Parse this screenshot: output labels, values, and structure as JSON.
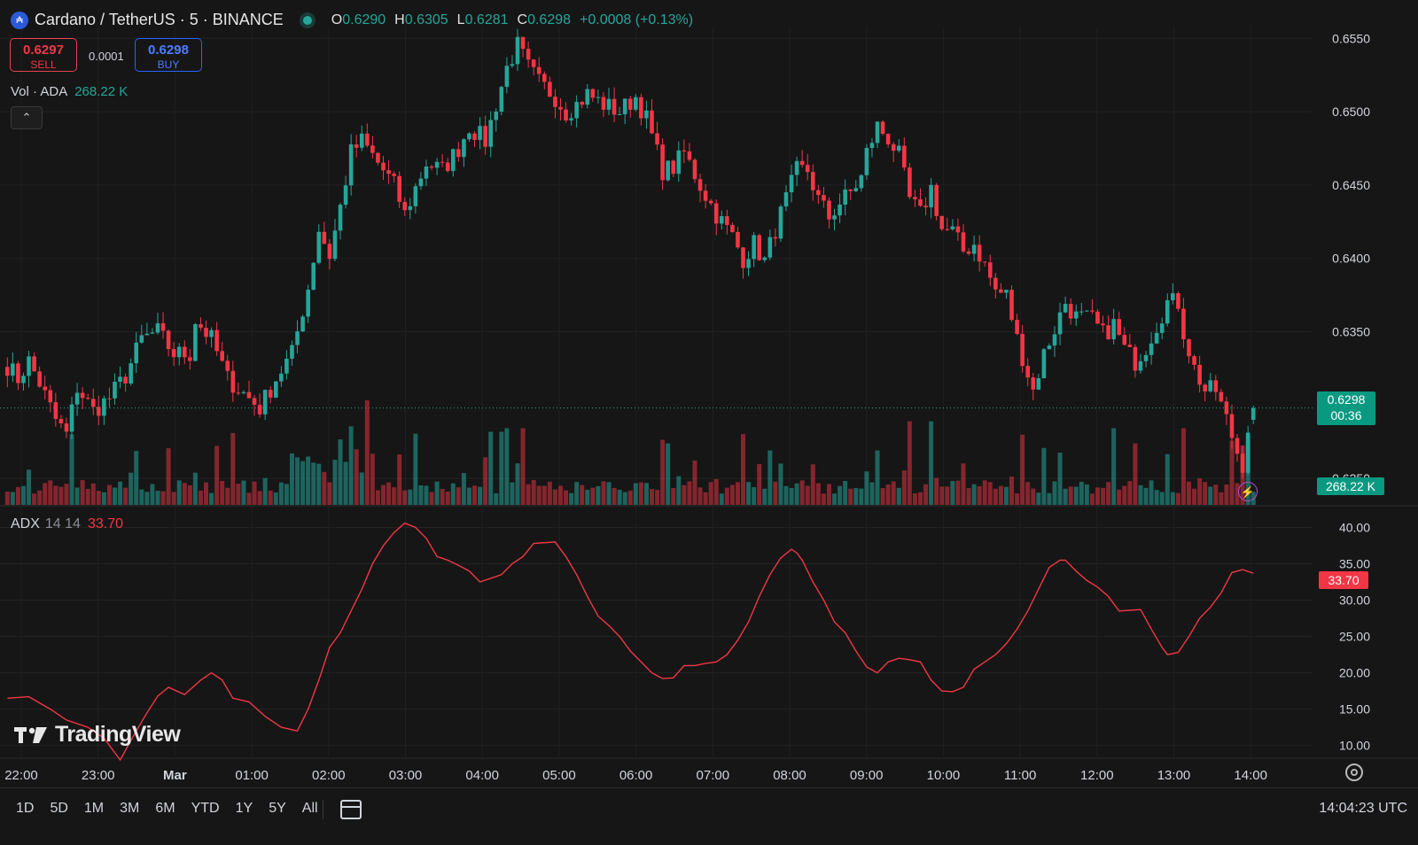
{
  "header": {
    "symbol_icon": "cardano-coin-icon",
    "title": "Cardano / TetherUS · 5 · BINANCE",
    "open_label": "O",
    "open": "0.6290",
    "high_label": "H",
    "high": "0.6305",
    "low_label": "L",
    "low": "0.6281",
    "close_label": "C",
    "close": "0.6298",
    "change": "+0.0008 (+0.13%)"
  },
  "trade": {
    "sell_price": "0.6297",
    "sell_label": "SELL",
    "spread": "0.0001",
    "buy_price": "0.6298",
    "buy_label": "BUY"
  },
  "volume_legend": {
    "label": "Vol · ADA",
    "value": "268.22 K"
  },
  "adx_legend": {
    "label": "ADX",
    "params": "14 14",
    "value": "33.70"
  },
  "price_tag": {
    "price": "0.6298",
    "countdown": "00:36"
  },
  "volume_tag": "268.22 K",
  "adx_tag": "33.70",
  "logo": {
    "text": "TradingView"
  },
  "bottom_bar": {
    "ranges": [
      "1D",
      "5D",
      "1M",
      "3M",
      "6M",
      "YTD",
      "1Y",
      "5Y",
      "All"
    ],
    "clock": "14:04:23 UTC"
  },
  "colors": {
    "up": "#26a69a",
    "down": "#f23645",
    "adx": "#f23645",
    "background": "#161616"
  },
  "chart_data": [
    {
      "type": "candlestick",
      "title": "Cardano / TetherUS · 5 · BINANCE",
      "price_axis": {
        "ylim": [
          0.6232,
          0.6558
        ],
        "ticks": [
          "0.6550",
          "0.6500",
          "0.6450",
          "0.6400",
          "0.6350",
          "0.6250"
        ]
      },
      "time_axis": {
        "tick_labels": [
          "22:00",
          "23:00",
          "Mar",
          "01:00",
          "02:00",
          "03:00",
          "04:00",
          "05:00",
          "06:00",
          "07:00",
          "08:00",
          "09:00",
          "10:00",
          "11:00",
          "12:00",
          "13:00",
          "14:00"
        ]
      },
      "current_price": 0.6298,
      "close_anchors": [
        [
          0,
          0.6327
        ],
        [
          2,
          0.6318
        ],
        [
          4,
          0.633
        ],
        [
          6,
          0.6315
        ],
        [
          9,
          0.629
        ],
        [
          11,
          0.628
        ],
        [
          13,
          0.6312
        ],
        [
          16,
          0.6296
        ],
        [
          19,
          0.6305
        ],
        [
          22,
          0.632
        ],
        [
          25,
          0.6345
        ],
        [
          28,
          0.635
        ],
        [
          31,
          0.6335
        ],
        [
          34,
          0.6335
        ],
        [
          35,
          0.6358
        ],
        [
          38,
          0.6345
        ],
        [
          41,
          0.6318
        ],
        [
          44,
          0.6308
        ],
        [
          47,
          0.6298
        ],
        [
          50,
          0.6318
        ],
        [
          53,
          0.6335
        ],
        [
          56,
          0.638
        ],
        [
          58,
          0.642
        ],
        [
          60,
          0.6402
        ],
        [
          62,
          0.6435
        ],
        [
          64,
          0.6472
        ],
        [
          66,
          0.648
        ],
        [
          70,
          0.646
        ],
        [
          72,
          0.645
        ],
        [
          74,
          0.643
        ],
        [
          76,
          0.6448
        ],
        [
          78,
          0.6465
        ],
        [
          81,
          0.646
        ],
        [
          84,
          0.6475
        ],
        [
          86,
          0.649
        ],
        [
          89,
          0.648
        ],
        [
          91,
          0.6505
        ],
        [
          93,
          0.653
        ],
        [
          95,
          0.6545
        ],
        [
          97,
          0.653
        ],
        [
          99,
          0.652
        ],
        [
          102,
          0.651
        ],
        [
          104,
          0.65
        ],
        [
          106,
          0.6505
        ],
        [
          108,
          0.6512
        ],
        [
          111,
          0.6505
        ],
        [
          114,
          0.65
        ],
        [
          117,
          0.651
        ],
        [
          119,
          0.6495
        ],
        [
          122,
          0.646
        ],
        [
          124,
          0.6462
        ],
        [
          126,
          0.6472
        ],
        [
          129,
          0.645
        ],
        [
          132,
          0.643
        ],
        [
          135,
          0.6415
        ],
        [
          137,
          0.64
        ],
        [
          139,
          0.641
        ],
        [
          141,
          0.6398
        ],
        [
          143,
          0.642
        ],
        [
          145,
          0.644
        ],
        [
          147,
          0.646
        ],
        [
          149,
          0.646
        ],
        [
          151,
          0.644
        ],
        [
          153,
          0.6428
        ],
        [
          155,
          0.6438
        ],
        [
          157,
          0.6445
        ],
        [
          159,
          0.6455
        ],
        [
          160,
          0.6472
        ],
        [
          162,
          0.649
        ],
        [
          164,
          0.6482
        ],
        [
          166,
          0.647
        ],
        [
          168,
          0.644
        ],
        [
          170,
          0.643
        ],
        [
          172,
          0.6448
        ],
        [
          174,
          0.642
        ],
        [
          176,
          0.6418
        ],
        [
          178,
          0.6405
        ],
        [
          180,
          0.641
        ],
        [
          182,
          0.6395
        ],
        [
          184,
          0.6378
        ],
        [
          186,
          0.6375
        ],
        [
          188,
          0.6345
        ],
        [
          191,
          0.631
        ],
        [
          193,
          0.6335
        ],
        [
          195,
          0.6352
        ],
        [
          197,
          0.637
        ],
        [
          199,
          0.636
        ],
        [
          202,
          0.6358
        ],
        [
          204,
          0.6348
        ],
        [
          206,
          0.6355
        ],
        [
          208,
          0.6338
        ],
        [
          210,
          0.633
        ],
        [
          212,
          0.634
        ],
        [
          214,
          0.6355
        ],
        [
          216,
          0.637
        ],
        [
          218,
          0.637
        ],
        [
          219,
          0.635
        ],
        [
          221,
          0.6325
        ],
        [
          223,
          0.631
        ],
        [
          225,
          0.631
        ],
        [
          227,
          0.629
        ],
        [
          229,
          0.6268
        ],
        [
          230,
          0.626
        ],
        [
          231,
          0.6285
        ],
        [
          232,
          0.6298
        ]
      ],
      "volume": {
        "last": "268.22 K",
        "max_estimate": 75
      }
    },
    {
      "type": "line",
      "series": [
        {
          "name": "ADX 14 14",
          "last": 33.7
        }
      ],
      "ylim": [
        8,
        42.5
      ],
      "ticks": [
        "40.00",
        "35.00",
        "30.00",
        "25.00",
        "20.00",
        "15.00",
        "10.00"
      ],
      "points": [
        [
          0,
          16.5
        ],
        [
          4,
          16.7
        ],
        [
          8,
          15.0
        ],
        [
          11,
          13.5
        ],
        [
          15,
          12.5
        ],
        [
          18,
          11.0
        ],
        [
          21,
          8.0
        ],
        [
          24,
          12.0
        ],
        [
          26,
          14.5
        ],
        [
          28,
          16.8
        ],
        [
          30,
          18.0
        ],
        [
          33,
          17.0
        ],
        [
          36,
          19.0
        ],
        [
          38,
          20.0
        ],
        [
          40,
          19.0
        ],
        [
          42,
          16.5
        ],
        [
          45,
          16.0
        ],
        [
          48,
          14.0
        ],
        [
          51,
          12.5
        ],
        [
          54,
          12.0
        ],
        [
          56,
          15.0
        ],
        [
          58,
          19.0
        ],
        [
          60,
          23.5
        ],
        [
          62,
          25.5
        ],
        [
          64,
          28.5
        ],
        [
          66,
          31.5
        ],
        [
          68,
          35.0
        ],
        [
          70,
          37.5
        ],
        [
          72,
          39.3
        ],
        [
          74,
          40.6
        ],
        [
          76,
          40.0
        ],
        [
          78,
          38.5
        ],
        [
          80,
          36.0
        ],
        [
          82,
          35.5
        ],
        [
          84,
          34.8
        ],
        [
          86,
          34.0
        ],
        [
          88,
          32.5
        ],
        [
          90,
          33.0
        ],
        [
          92,
          33.5
        ],
        [
          94,
          35.0
        ],
        [
          96,
          36.0
        ],
        [
          98,
          37.8
        ],
        [
          102,
          38.0
        ],
        [
          104,
          36.0
        ],
        [
          106,
          33.5
        ],
        [
          108,
          30.5
        ],
        [
          110,
          27.8
        ],
        [
          112,
          26.5
        ],
        [
          114,
          25.0
        ],
        [
          116,
          23.0
        ],
        [
          118,
          21.5
        ],
        [
          120,
          20.0
        ],
        [
          122,
          19.2
        ],
        [
          124,
          19.3
        ],
        [
          126,
          21.0
        ],
        [
          128,
          21.0
        ],
        [
          130,
          21.3
        ],
        [
          132,
          21.5
        ],
        [
          134,
          22.5
        ],
        [
          136,
          24.5
        ],
        [
          138,
          27.0
        ],
        [
          140,
          30.5
        ],
        [
          142,
          33.5
        ],
        [
          144,
          35.8
        ],
        [
          146,
          37.0
        ],
        [
          147,
          36.5
        ],
        [
          148,
          35.5
        ],
        [
          150,
          32.5
        ],
        [
          152,
          30.0
        ],
        [
          154,
          27.0
        ],
        [
          156,
          25.5
        ],
        [
          158,
          23.0
        ],
        [
          160,
          20.8
        ],
        [
          162,
          20.0
        ],
        [
          164,
          21.5
        ],
        [
          166,
          22.0
        ],
        [
          168,
          21.8
        ],
        [
          170,
          21.5
        ],
        [
          172,
          19.0
        ],
        [
          174,
          17.5
        ],
        [
          176,
          17.4
        ],
        [
          178,
          18.0
        ],
        [
          180,
          20.5
        ],
        [
          182,
          21.5
        ],
        [
          184,
          22.5
        ],
        [
          186,
          24.0
        ],
        [
          188,
          26.0
        ],
        [
          190,
          28.5
        ],
        [
          192,
          31.5
        ],
        [
          194,
          34.5
        ],
        [
          196,
          35.5
        ],
        [
          197,
          35.5
        ],
        [
          199,
          34.0
        ],
        [
          201,
          32.7
        ],
        [
          203,
          31.8
        ],
        [
          205,
          30.5
        ],
        [
          207,
          28.5
        ],
        [
          209,
          28.6
        ],
        [
          211,
          28.7
        ],
        [
          213,
          26.0
        ],
        [
          215,
          23.5
        ],
        [
          216,
          22.5
        ],
        [
          218,
          22.8
        ],
        [
          220,
          25.0
        ],
        [
          222,
          27.5
        ],
        [
          224,
          29.0
        ],
        [
          226,
          31.0
        ],
        [
          228,
          33.8
        ],
        [
          230,
          34.2
        ],
        [
          232,
          33.7
        ]
      ]
    }
  ]
}
